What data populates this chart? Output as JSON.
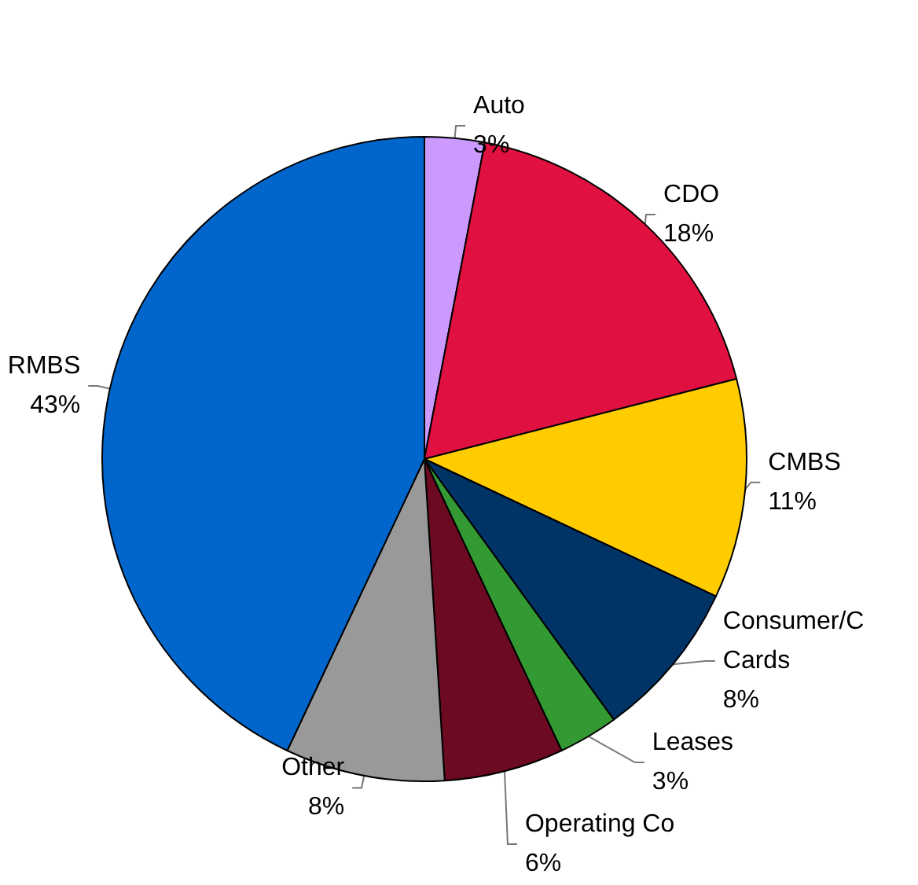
{
  "chart_data": {
    "type": "pie",
    "categories": [
      "Auto",
      "CDO",
      "CMBS",
      "Consumer/C\nCards",
      "Leases",
      "Operating Co",
      "Other",
      "RMBS"
    ],
    "values": [
      3,
      18,
      11,
      8,
      3,
      6,
      8,
      43
    ],
    "value_labels": [
      "3%",
      "18%",
      "11%",
      "8%",
      "3%",
      "6%",
      "8%",
      "43%"
    ],
    "colors": [
      "#cc99ff",
      "#e01040",
      "#ffcc00",
      "#003366",
      "#339933",
      "#6b0a20",
      "#999999",
      "#0066cc"
    ],
    "legend": false
  }
}
